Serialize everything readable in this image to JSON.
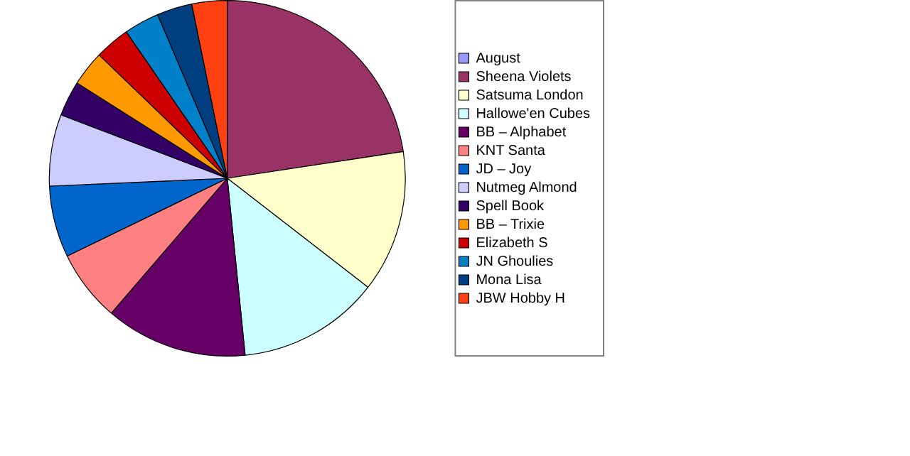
{
  "chart_data": {
    "type": "pie",
    "categories": [
      "August",
      "Sheena Violets",
      "Satsuma London",
      "Hallowe'en Cubes",
      "BB – Alphabet",
      "KNT Santa",
      "JD – Joy",
      "Nutmeg Almond",
      "Spell Book",
      "BB – Trixie",
      "Elizabeth S",
      "JN Ghoulies",
      "Mona Lisa",
      "JBW Hobby H"
    ],
    "values": [
      0,
      22.6,
      12.9,
      12.9,
      12.9,
      6.5,
      6.5,
      6.5,
      3.2,
      3.2,
      3.2,
      3.2,
      3.2,
      3.2
    ],
    "colors": [
      "#9999ff",
      "#993366",
      "#ffffcc",
      "#ccffff",
      "#660066",
      "#ff8080",
      "#0066cc",
      "#ccccff",
      "#330066",
      "#ff9900",
      "#cc0000",
      "#0080c8",
      "#003f7f",
      "#ff4010"
    ],
    "legend": "right"
  }
}
